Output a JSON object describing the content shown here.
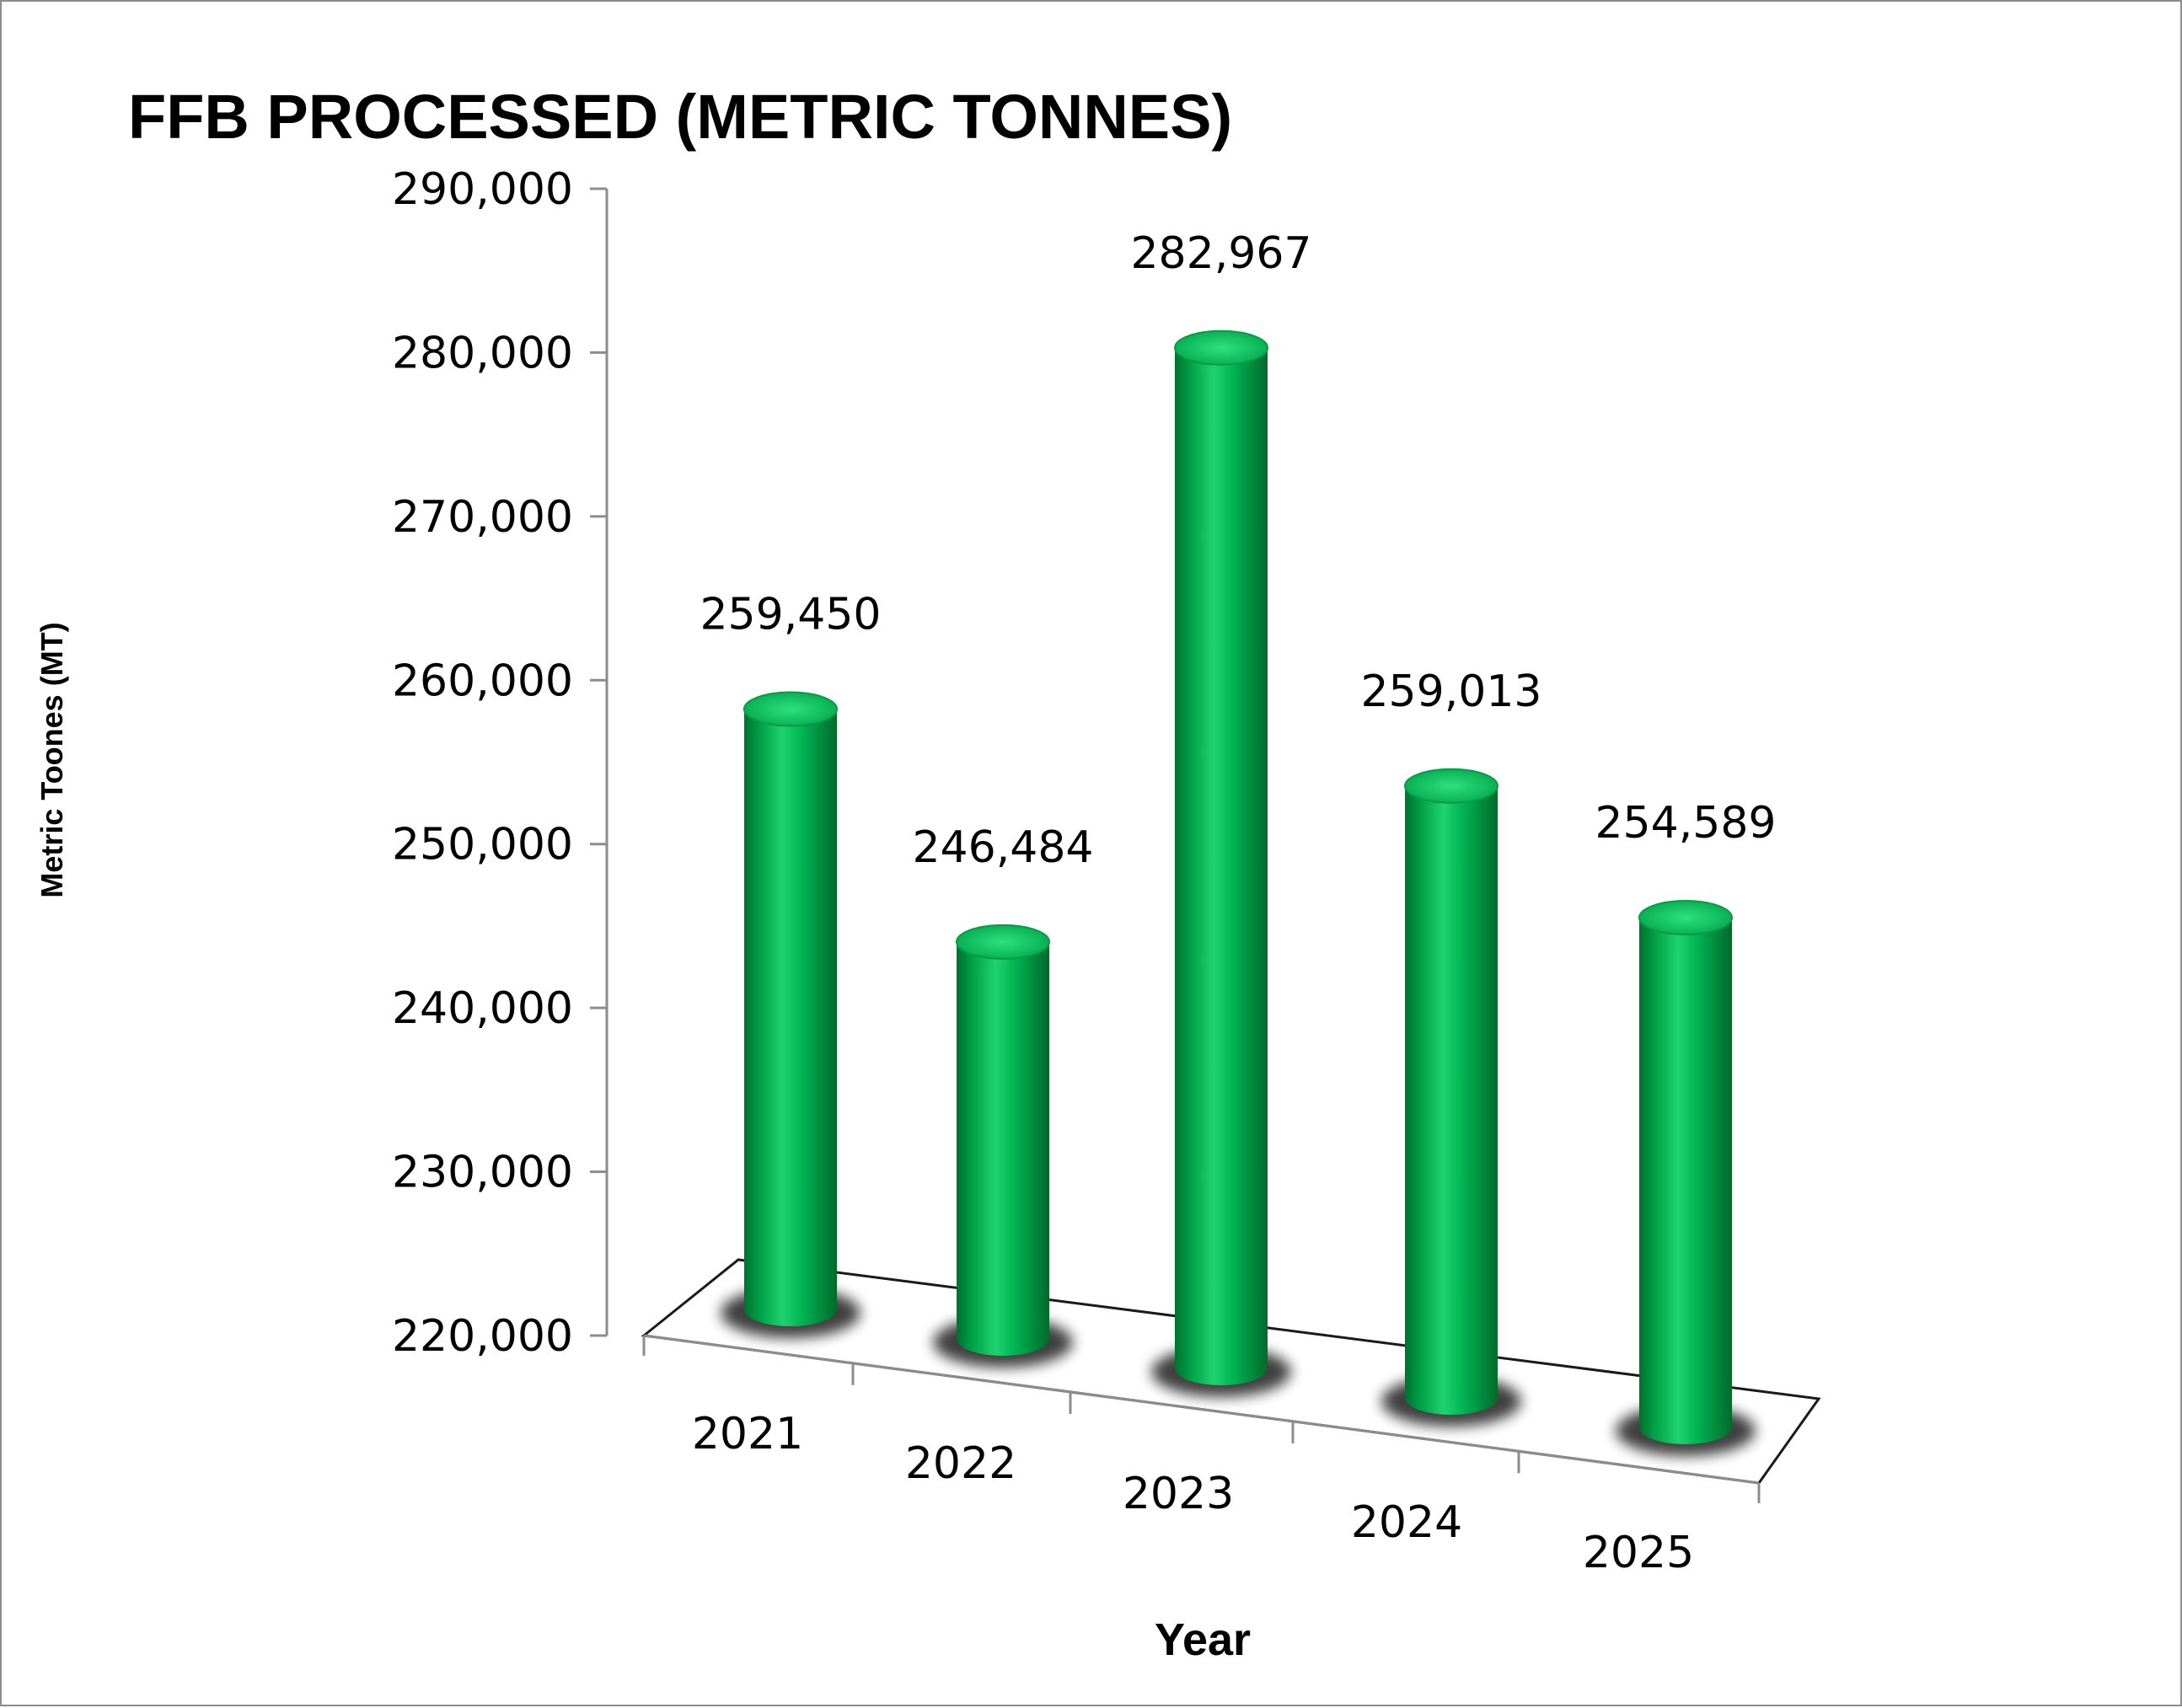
{
  "chart_data": {
    "type": "bar",
    "style": "3d-cylinder",
    "title": "FFB PROCESSED (METRIC TONNES)",
    "xlabel": "Year",
    "ylabel": "Metric Toones (MT)",
    "categories": [
      "2021",
      "2022",
      "2023",
      "2024",
      "2025"
    ],
    "values": [
      259450,
      246484,
      282967,
      259013,
      254589
    ],
    "data_labels": [
      "259,450",
      "246,484",
      "282,967",
      "259,013",
      "254,589"
    ],
    "ylim": [
      220000,
      290000
    ],
    "yticks": [
      220000,
      230000,
      240000,
      250000,
      260000,
      270000,
      280000,
      290000
    ],
    "ytick_labels": [
      "220,000",
      "230,000",
      "240,000",
      "250,000",
      "260,000",
      "270,000",
      "280,000",
      "290,000"
    ],
    "grid": false,
    "bar_color": "#00b050"
  }
}
